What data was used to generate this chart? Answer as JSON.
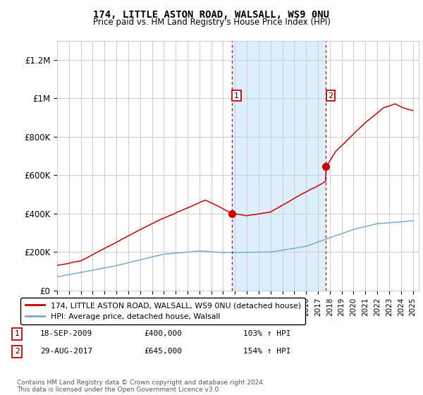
{
  "title1": "174, LITTLE ASTON ROAD, WALSALL, WS9 0NU",
  "title2": "Price paid vs. HM Land Registry's House Price Index (HPI)",
  "xlim_start": 1995.0,
  "xlim_end": 2025.5,
  "ylim": [
    0,
    1300000
  ],
  "yticks": [
    0,
    200000,
    400000,
    600000,
    800000,
    1000000,
    1200000
  ],
  "ytick_labels": [
    "£0",
    "£200K",
    "£400K",
    "£600K",
    "£800K",
    "£1M",
    "£1.2M"
  ],
  "purchase1_x": 2009.72,
  "purchase1_y": 400000,
  "purchase2_x": 2017.66,
  "purchase2_y": 645000,
  "vline1_x": 2009.72,
  "vline2_x": 2017.66,
  "shade_xmin": 2009.72,
  "shade_xmax": 2017.66,
  "legend_line1": "174, LITTLE ASTON ROAD, WALSALL, WS9 0NU (detached house)",
  "legend_line2": "HPI: Average price, detached house, Walsall",
  "footnote": "Contains HM Land Registry data © Crown copyright and database right 2024.\nThis data is licensed under the Open Government Licence v3.0.",
  "table_rows": [
    {
      "num": "1",
      "date": "18-SEP-2009",
      "price": "£400,000",
      "hpi": "103% ↑ HPI"
    },
    {
      "num": "2",
      "date": "29-AUG-2017",
      "price": "£645,000",
      "hpi": "154% ↑ HPI"
    }
  ],
  "line_color_red": "#cc0000",
  "line_color_blue": "#7aabcc",
  "shade_color": "#ddeeff",
  "vline_color": "#cc0000",
  "background_color": "#ffffff",
  "grid_color": "#cccccc"
}
